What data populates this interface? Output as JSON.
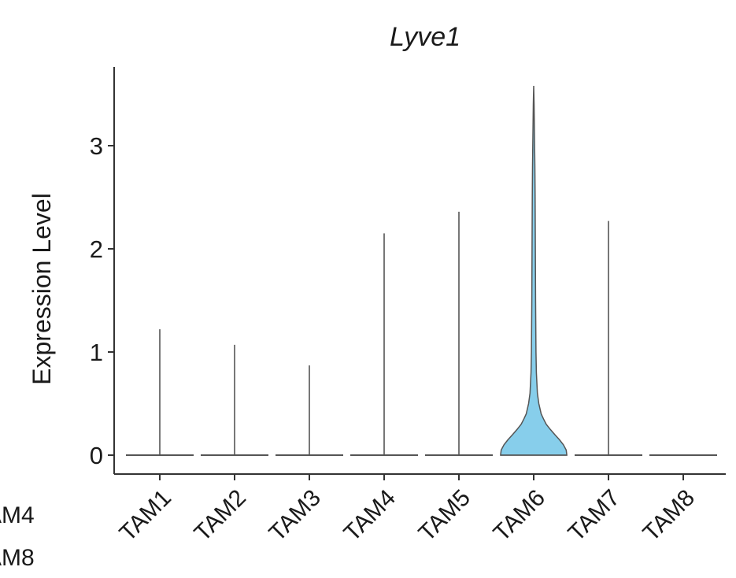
{
  "chart_data": {
    "type": "violin",
    "title": "Lyve1",
    "xlabel": "",
    "ylabel": "Expression Level",
    "ylim": [
      -0.18,
      3.8
    ],
    "yticks": [
      0,
      1,
      2,
      3
    ],
    "grid": false,
    "legend": "none",
    "colors": {
      "fill": "#87ceeb",
      "line": "#555555",
      "axis": "#333333"
    },
    "categories": [
      "TAM1",
      "TAM2",
      "TAM3",
      "TAM4",
      "TAM5",
      "TAM6",
      "TAM7",
      "TAM8"
    ],
    "max_values": [
      1.22,
      1.07,
      0.87,
      2.15,
      2.36,
      3.58,
      2.27,
      0.0
    ],
    "violin": {
      "category": "TAM6",
      "density_profile": [
        [
          0.0,
          0.98
        ],
        [
          0.05,
          0.96
        ],
        [
          0.1,
          0.88
        ],
        [
          0.15,
          0.76
        ],
        [
          0.2,
          0.62
        ],
        [
          0.25,
          0.49
        ],
        [
          0.3,
          0.37
        ],
        [
          0.35,
          0.29
        ],
        [
          0.4,
          0.22
        ],
        [
          0.5,
          0.15
        ],
        [
          0.6,
          0.11
        ],
        [
          0.8,
          0.08
        ],
        [
          1.0,
          0.068
        ],
        [
          1.5,
          0.056
        ],
        [
          2.0,
          0.05
        ],
        [
          2.5,
          0.042
        ],
        [
          2.8,
          0.034
        ],
        [
          3.1,
          0.024
        ],
        [
          3.4,
          0.012
        ],
        [
          3.58,
          0.0
        ]
      ]
    }
  },
  "edge_labels": [
    "AM4",
    "AM8"
  ]
}
